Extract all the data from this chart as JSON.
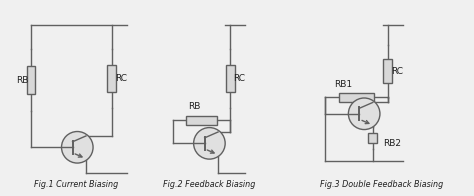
{
  "bg_color": "#f0f0f0",
  "line_color": "#606060",
  "line_width": 1.0,
  "resistor_fill": "#d8d8d8",
  "resistor_edge": "#606060",
  "transistor_fill": "#e0e0e0",
  "text_color": "#202020",
  "fig1_label": "Fig.1 Current Biasing",
  "fig2_label": "Fig.2 Feedback Biasing",
  "fig3_label": "Fig.3 Double Feedback Biasing",
  "label_rb": "RB",
  "label_rc": "RC",
  "label_rb1": "RB1",
  "label_rb2": "RB2",
  "font_size_label": 6.5,
  "font_size_caption": 5.8
}
